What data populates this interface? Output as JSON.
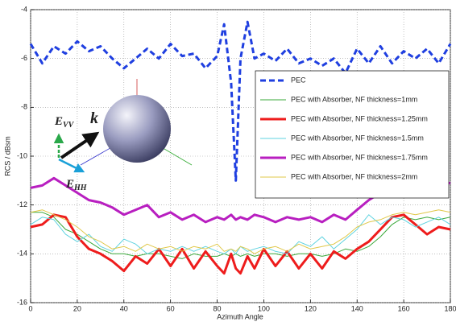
{
  "chart_data": {
    "type": "line",
    "ylabel": "RCS / dBsm",
    "xlabel": "Azimuth Angle",
    "x": [
      0,
      5,
      10,
      15,
      20,
      25,
      30,
      35,
      40,
      45,
      50,
      55,
      60,
      65,
      70,
      75,
      80,
      83,
      86,
      88,
      90,
      93,
      96,
      100,
      105,
      110,
      115,
      120,
      125,
      130,
      135,
      140,
      145,
      150,
      155,
      160,
      165,
      170,
      175,
      180
    ],
    "series": [
      {
        "name": "PEC",
        "color": "#1f3fe0",
        "line_width": 3,
        "dashed": true,
        "values": [
          -5.4,
          -6.2,
          -5.5,
          -5.8,
          -5.3,
          -5.7,
          -5.5,
          -6.0,
          -6.4,
          -6.0,
          -5.6,
          -6.0,
          -5.4,
          -5.9,
          -5.8,
          -6.4,
          -5.9,
          -4.6,
          -7,
          -11,
          -6,
          -4.5,
          -6,
          -5.8,
          -6.1,
          -5.6,
          -6.2,
          -6.0,
          -6.3,
          -6.0,
          -6.6,
          -5.6,
          -6.2,
          -5.5,
          -6.2,
          -5.7,
          -6.0,
          -5.6,
          -6.2,
          -5.4
        ]
      },
      {
        "name": "PEC with Absorber, NF thickness=1mm",
        "color": "#3aa83a",
        "line_width": 1,
        "dashed": false,
        "values": [
          -12.3,
          -12.3,
          -12.5,
          -13.0,
          -13.2,
          -13.5,
          -13.8,
          -14.0,
          -14.0,
          -14.1,
          -14.0,
          -14.0,
          -14.1,
          -14.2,
          -14.0,
          -14.1,
          -14.1,
          -14.0,
          -14.1,
          -14.0,
          -14.1,
          -14.0,
          -14.1,
          -14.0,
          -14.0,
          -14.1,
          -14.0,
          -14.0,
          -14.1,
          -14.0,
          -13.8,
          -13.9,
          -13.7,
          -13.3,
          -12.8,
          -12.5,
          -12.6,
          -12.5,
          -12.6,
          -12.5
        ]
      },
      {
        "name": "PEC with Absorber, NF thickness=1.25mm",
        "color": "#ee1c1c",
        "line_width": 3,
        "dashed": false,
        "values": [
          -12.9,
          -12.8,
          -12.4,
          -12.5,
          -13.3,
          -13.8,
          -14.0,
          -14.3,
          -14.7,
          -14.1,
          -14.4,
          -13.8,
          -14.5,
          -13.8,
          -14.6,
          -13.9,
          -14.5,
          -14.8,
          -14,
          -14.6,
          -14.8,
          -14.1,
          -14.6,
          -13.8,
          -14.5,
          -13.9,
          -14.6,
          -14.0,
          -14.6,
          -13.9,
          -14.2,
          -13.8,
          -13.5,
          -13.0,
          -12.5,
          -12.4,
          -12.8,
          -13.2,
          -12.9,
          -13.0
        ]
      },
      {
        "name": "PEC with Absorber, NF thickness=1.5mm",
        "color": "#5fd3e0",
        "line_width": 1,
        "dashed": false,
        "values": [
          -12.8,
          -12.5,
          -12.6,
          -13.2,
          -13.5,
          -13.2,
          -13.7,
          -13.9,
          -13.4,
          -13.6,
          -14.0,
          -13.8,
          -13.9,
          -13.7,
          -13.9,
          -13.7,
          -13.9,
          -14.0,
          -13.8,
          -14.0,
          -13.7,
          -13.9,
          -13.8,
          -13.7,
          -13.9,
          -14.0,
          -13.5,
          -13.7,
          -13.3,
          -13.8,
          -13.4,
          -13.0,
          -12.4,
          -12.8,
          -12.5,
          -12.6,
          -12.9,
          -12.7,
          -12.5,
          -12.8
        ]
      },
      {
        "name": "PEC with Absorber, NF thickness=1.75mm",
        "color": "#b81fc0",
        "line_width": 3,
        "dashed": false,
        "values": [
          -11.3,
          -11.2,
          -10.9,
          -11.2,
          -11.5,
          -11.8,
          -11.9,
          -12.1,
          -12.4,
          -12.2,
          -12.0,
          -12.5,
          -12.3,
          -12.6,
          -12.4,
          -12.7,
          -12.5,
          -12.6,
          -12.4,
          -12.6,
          -12.5,
          -12.6,
          -12.4,
          -12.5,
          -12.7,
          -12.5,
          -12.6,
          -12.5,
          -12.7,
          -12.4,
          -12.6,
          -12.2,
          -11.8,
          -11.5,
          -11.4,
          -11.4,
          -11.2,
          -11.0,
          -11.1,
          -11.1
        ]
      },
      {
        "name": "PEC with Absorber, NF thickness=2mm",
        "color": "#e0c84a",
        "line_width": 1,
        "dashed": false,
        "values": [
          -12.3,
          -12.2,
          -12.4,
          -12.6,
          -12.9,
          -13.3,
          -13.5,
          -13.8,
          -13.7,
          -13.9,
          -13.6,
          -13.8,
          -13.7,
          -13.9,
          -13.7,
          -13.8,
          -13.6,
          -13.9,
          -13.8,
          -13.9,
          -13.7,
          -13.8,
          -14.0,
          -13.8,
          -13.7,
          -13.9,
          -13.6,
          -13.8,
          -13.7,
          -13.6,
          -13.3,
          -12.9,
          -12.7,
          -12.6,
          -12.4,
          -12.3,
          -12.4,
          -12.3,
          -12.2,
          -12.3
        ]
      }
    ],
    "xlim": [
      0,
      180
    ],
    "xticks": [
      0,
      20,
      40,
      60,
      80,
      100,
      120,
      140,
      160,
      180
    ],
    "ylim": [
      -16,
      -4
    ],
    "yticks": [
      -16,
      -14,
      -12,
      -10,
      -8,
      -6,
      -4
    ],
    "grid": true,
    "legend": "upper right",
    "annotations": [
      {
        "text": "E",
        "sub": "VV",
        "color": "#2aa84a"
      },
      {
        "text": "k",
        "color": "#111111"
      },
      {
        "text": "E",
        "sub": "HH",
        "color": "#1aa0d8"
      }
    ]
  }
}
